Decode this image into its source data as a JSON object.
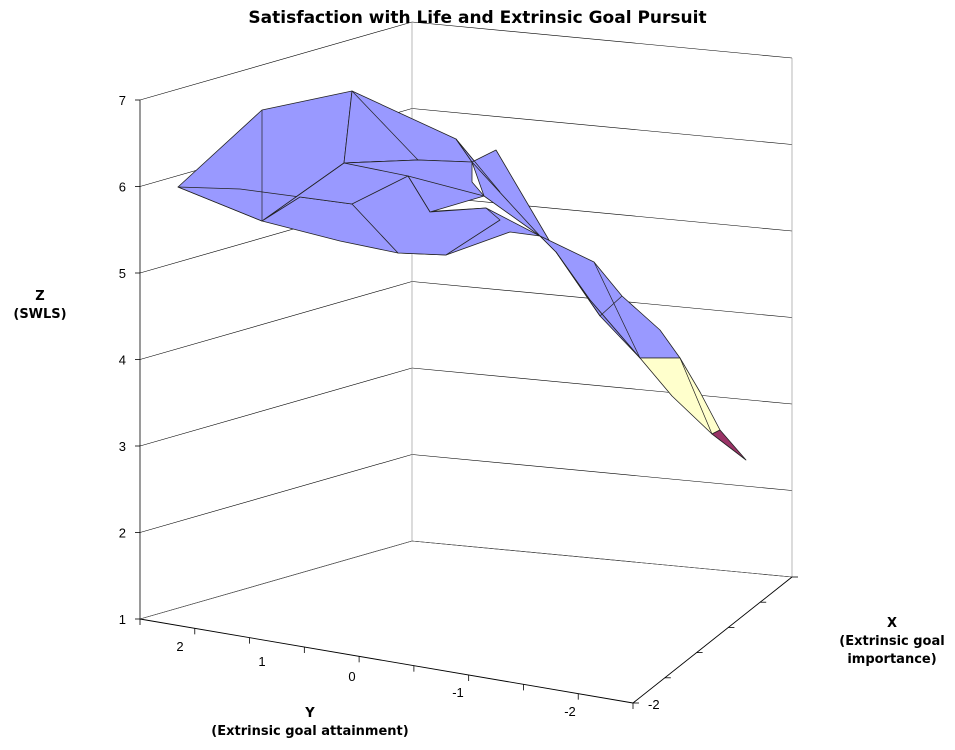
{
  "chart_data": {
    "type": "surface",
    "title": "Satisfaction with Life and Extrinsic Goal Pursuit",
    "x_axis": {
      "name": "X",
      "label": "(Extrinsic goal importance)",
      "ticks": [
        "-2"
      ]
    },
    "y_axis": {
      "name": "Y",
      "label": "(Extrinsic goal attainment)",
      "ticks": [
        "2",
        "1",
        "0",
        "-1",
        "-2"
      ]
    },
    "z_axis": {
      "name": "Z",
      "label": "(SWLS)",
      "ticks": [
        "1",
        "2",
        "3",
        "4",
        "5",
        "6",
        "7"
      ],
      "range": [
        1,
        7
      ]
    },
    "grid": true,
    "legend": "none",
    "bands": [
      {
        "range": "3-4",
        "color": "#ffffcc"
      },
      {
        "range": "2-3",
        "color": "#993366"
      },
      {
        "range": "4-7",
        "color": "#9999ff"
      }
    ]
  }
}
